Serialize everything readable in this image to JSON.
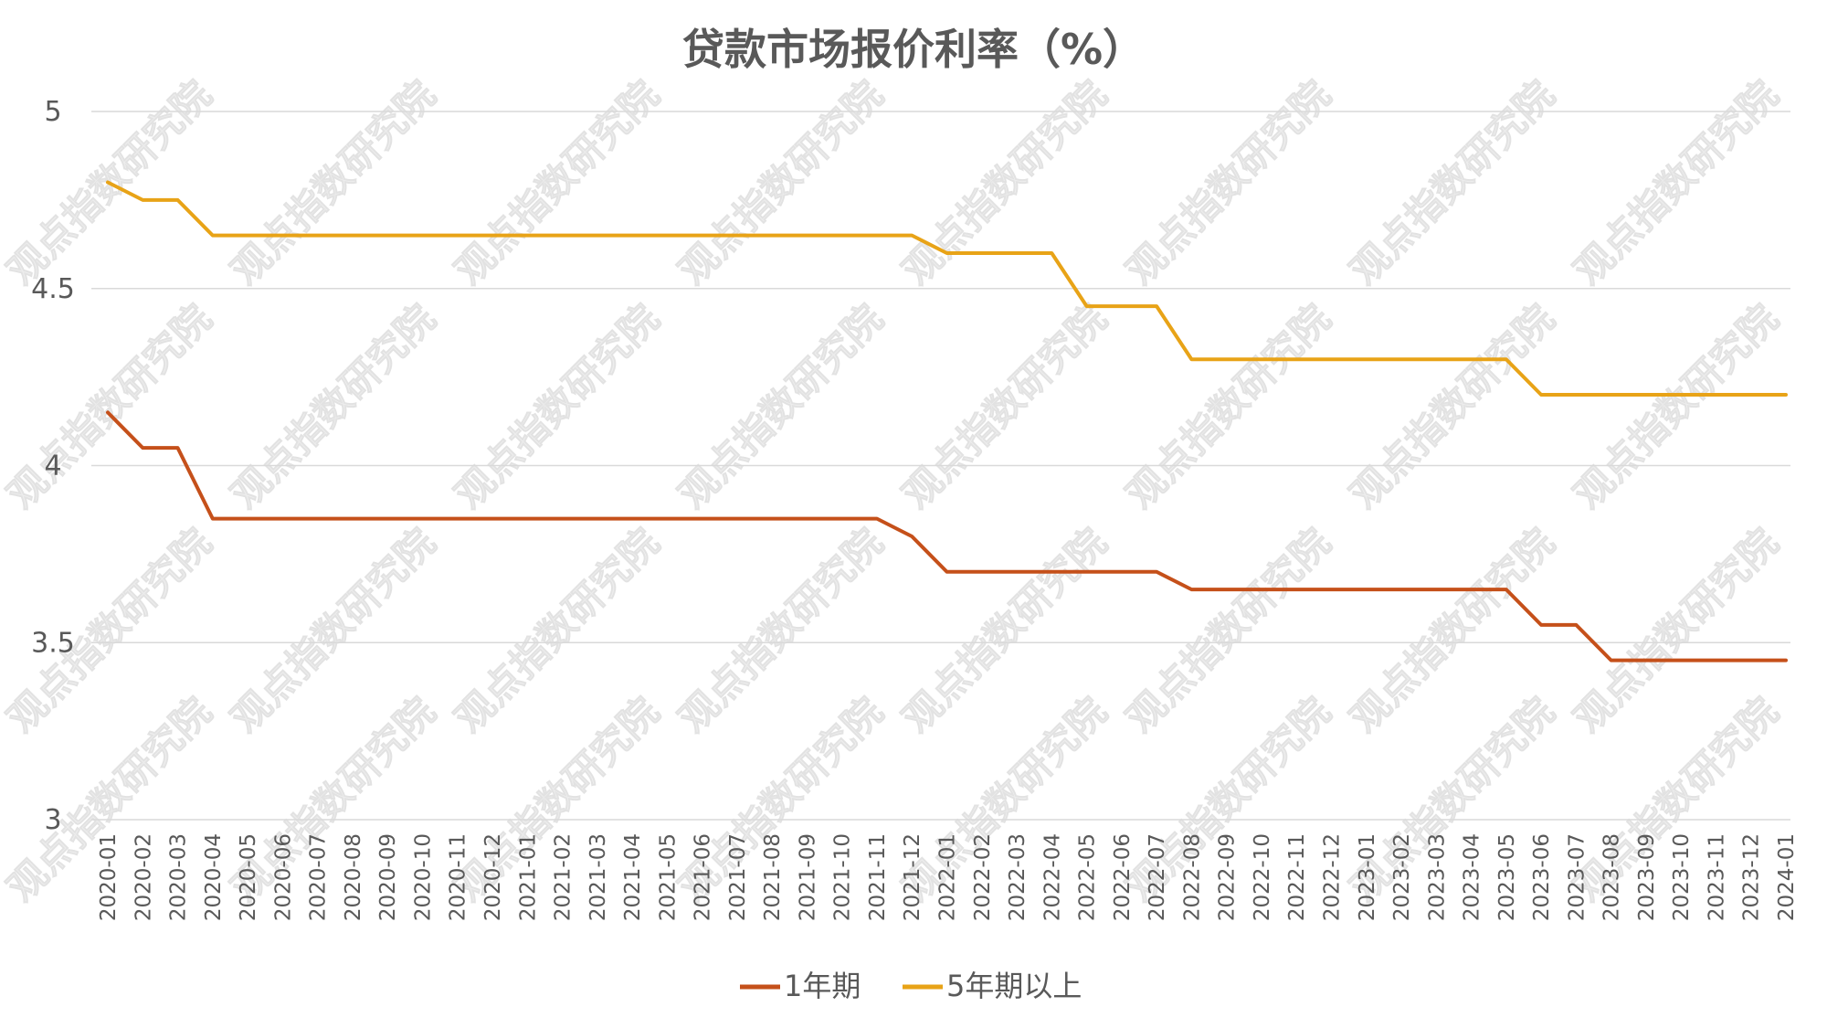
{
  "chart_data": {
    "type": "line",
    "title": "贷款市场报价利率（%）",
    "xlabel": "",
    "ylabel": "",
    "ylim": [
      3,
      5
    ],
    "y_ticks": [
      "5",
      "4.5",
      "4",
      "3.5",
      "3"
    ],
    "y_tick_values": [
      5,
      4.5,
      4,
      3.5,
      3
    ],
    "grid": true,
    "legend_position": "bottom-center",
    "categories": [
      "2020-01",
      "2020-02",
      "2020-03",
      "2020-04",
      "2020-05",
      "2020-06",
      "2020-07",
      "2020-08",
      "2020-09",
      "2020-10",
      "2020-11",
      "2020-12",
      "2021-01",
      "2021-02",
      "2021-03",
      "2021-04",
      "2021-05",
      "2021-06",
      "2021-07",
      "2021-08",
      "2021-09",
      "2021-10",
      "2021-11",
      "2021-12",
      "2022-01",
      "2022-02",
      "2022-03",
      "2022-04",
      "2022-05",
      "2022-06",
      "2022-07",
      "2022-08",
      "2022-09",
      "2022-10",
      "2022-11",
      "2022-12",
      "2023-01",
      "2023-02",
      "2023-03",
      "2023-04",
      "2023-05",
      "2023-06",
      "2023-07",
      "2023-08",
      "2023-09",
      "2023-10",
      "2023-11",
      "2023-12",
      "2024-01"
    ],
    "series": [
      {
        "name": "1年期",
        "color": "#c5501a",
        "values": [
          4.15,
          4.05,
          4.05,
          3.85,
          3.85,
          3.85,
          3.85,
          3.85,
          3.85,
          3.85,
          3.85,
          3.85,
          3.85,
          3.85,
          3.85,
          3.85,
          3.85,
          3.85,
          3.85,
          3.85,
          3.85,
          3.85,
          3.85,
          3.8,
          3.7,
          3.7,
          3.7,
          3.7,
          3.7,
          3.7,
          3.7,
          3.65,
          3.65,
          3.65,
          3.65,
          3.65,
          3.65,
          3.65,
          3.65,
          3.65,
          3.65,
          3.55,
          3.55,
          3.45,
          3.45,
          3.45,
          3.45,
          3.45,
          3.45
        ]
      },
      {
        "name": "5年期以上",
        "color": "#e8a317",
        "values": [
          4.8,
          4.75,
          4.75,
          4.65,
          4.65,
          4.65,
          4.65,
          4.65,
          4.65,
          4.65,
          4.65,
          4.65,
          4.65,
          4.65,
          4.65,
          4.65,
          4.65,
          4.65,
          4.65,
          4.65,
          4.65,
          4.65,
          4.65,
          4.65,
          4.6,
          4.6,
          4.6,
          4.6,
          4.45,
          4.45,
          4.45,
          4.3,
          4.3,
          4.3,
          4.3,
          4.3,
          4.3,
          4.3,
          4.3,
          4.3,
          4.3,
          4.2,
          4.2,
          4.2,
          4.2,
          4.2,
          4.2,
          4.2,
          4.2
        ]
      }
    ]
  },
  "watermark": {
    "text": "观点指数研究院",
    "color": "#ededed"
  }
}
